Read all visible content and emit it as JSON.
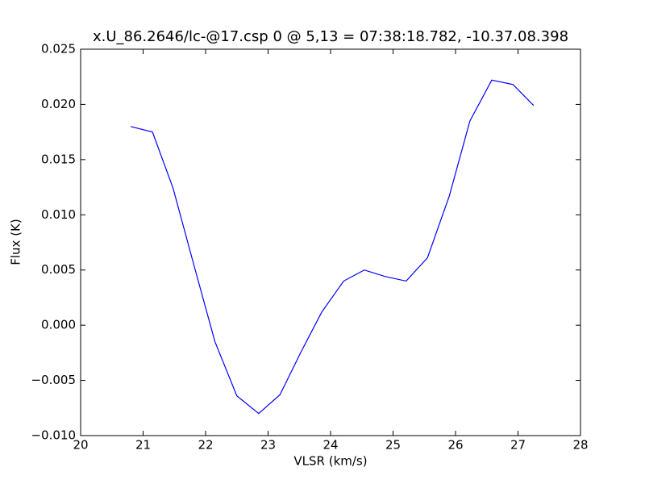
{
  "chart_data": {
    "type": "line",
    "title": "x.U_86.2646/lc-@17.csp 0 @ 5,13 = 07:38:18.782, -10.37.08.398",
    "x_label": "VLSR (km/s)",
    "y_label": "Flux (K)",
    "series": [
      {
        "color": "#0000ff",
        "x": [
          20.8,
          21.15,
          21.48,
          21.82,
          22.15,
          22.5,
          22.85,
          23.19,
          23.52,
          23.86,
          24.21,
          24.54,
          24.88,
          25.21,
          25.55,
          25.9,
          26.23,
          26.58,
          26.92,
          27.25
        ],
        "values": [
          0.018,
          0.0175,
          0.0124,
          0.0053,
          -0.0015,
          -0.0064,
          -0.008,
          -0.0063,
          -0.0025,
          0.0012,
          0.004,
          0.005,
          0.0044,
          0.004,
          0.0061,
          0.0117,
          0.0185,
          0.0222,
          0.0218,
          0.0199
        ]
      }
    ],
    "xlim": [
      20,
      28
    ],
    "xticks": [
      20,
      21,
      22,
      23,
      24,
      25,
      26,
      27,
      28
    ],
    "ylim": [
      -0.01,
      0.025
    ],
    "yticks": [
      {
        "value": -0.01,
        "label": "−0.010"
      },
      {
        "value": -0.005,
        "label": "−0.005"
      },
      {
        "value": 0,
        "label": "0.000"
      },
      {
        "value": 0.005,
        "label": "0.005"
      },
      {
        "value": 0.01,
        "label": "0.010"
      },
      {
        "value": 0.015,
        "label": "0.015"
      },
      {
        "value": 0.02,
        "label": "0.020"
      },
      {
        "value": 0.025,
        "label": "0.025"
      }
    ],
    "grid": false
  }
}
